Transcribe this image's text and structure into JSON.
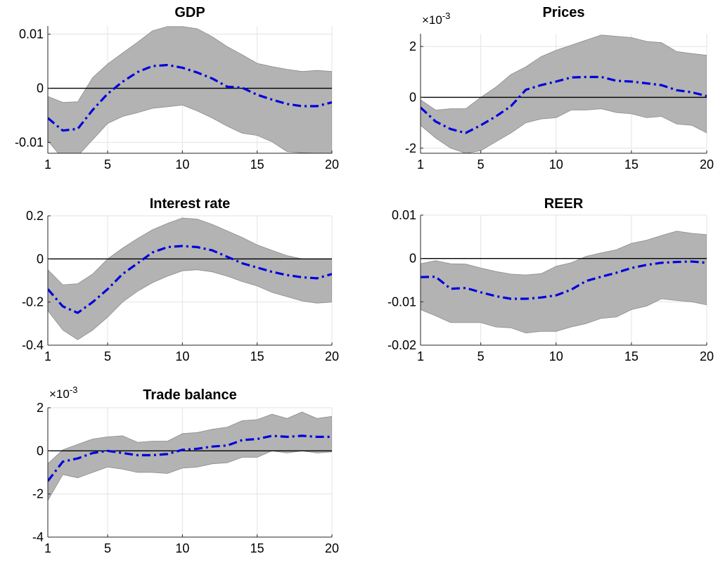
{
  "colors": {
    "band": "#b3b3b3",
    "band_edge": "#8c8c8c",
    "irf_line": "#0000dd",
    "zero_line": "#000000",
    "grid": "#e3e3e3",
    "axis": "#262626"
  },
  "chart_data": [
    {
      "type": "area",
      "title": "GDP",
      "exponent_label": "",
      "xlim": [
        1,
        20
      ],
      "ylim": [
        -0.012,
        0.0115
      ],
      "xticks": [
        1,
        5,
        10,
        15,
        20
      ],
      "yticks": [
        -0.01,
        0,
        0.01
      ],
      "ytick_labels": [
        "-0.01",
        "0",
        "0.01"
      ],
      "grid": true,
      "x": [
        1,
        2,
        3,
        4,
        5,
        6,
        7,
        8,
        9,
        10,
        11,
        12,
        13,
        14,
        15,
        16,
        17,
        18,
        19,
        20
      ],
      "series": [
        {
          "role": "median",
          "style": "dash-dot",
          "values": [
            -0.0055,
            -0.0078,
            -0.0075,
            -0.004,
            -0.001,
            0.0012,
            0.003,
            0.0041,
            0.0043,
            0.0038,
            0.0029,
            0.0018,
            0.0003,
            0.0001,
            -0.0012,
            -0.0021,
            -0.0029,
            -0.0033,
            -0.0033,
            -0.0026
          ]
        },
        {
          "role": "upper",
          "values": [
            -0.0015,
            -0.0026,
            -0.0025,
            0.002,
            0.0045,
            0.0065,
            0.0085,
            0.0106,
            0.0114,
            0.0114,
            0.011,
            0.0095,
            0.0077,
            0.0062,
            0.0046,
            0.004,
            0.0035,
            0.0031,
            0.0033,
            0.0031
          ]
        },
        {
          "role": "lower",
          "values": [
            -0.0097,
            -0.013,
            -0.0125,
            -0.0095,
            -0.0065,
            -0.0052,
            -0.0045,
            -0.0037,
            -0.0034,
            -0.0031,
            -0.0042,
            -0.0055,
            -0.007,
            -0.0083,
            -0.0087,
            -0.0099,
            -0.0117,
            -0.0119,
            -0.012,
            -0.012
          ]
        }
      ]
    },
    {
      "type": "area",
      "title": "Prices",
      "exponent_label": "×10",
      "exponent_power": "-3",
      "xlim": [
        1,
        20
      ],
      "ylim": [
        -2.2,
        2.5
      ],
      "xticks": [
        1,
        5,
        10,
        15,
        20
      ],
      "yticks": [
        -2,
        0,
        2
      ],
      "ytick_labels": [
        "-2",
        "0",
        "2"
      ],
      "grid": true,
      "x": [
        1,
        2,
        3,
        4,
        5,
        6,
        7,
        8,
        9,
        10,
        11,
        12,
        13,
        14,
        15,
        16,
        17,
        18,
        19,
        20
      ],
      "series": [
        {
          "role": "median",
          "style": "dash-dot",
          "values": [
            -0.4,
            -0.95,
            -1.25,
            -1.4,
            -1.1,
            -0.75,
            -0.35,
            0.3,
            0.48,
            0.62,
            0.78,
            0.8,
            0.8,
            0.65,
            0.62,
            0.55,
            0.48,
            0.28,
            0.2,
            0.05
          ]
        },
        {
          "role": "upper",
          "values": [
            -0.1,
            -0.5,
            -0.45,
            -0.45,
            0.0,
            0.4,
            0.9,
            1.2,
            1.6,
            1.85,
            2.05,
            2.25,
            2.45,
            2.4,
            2.35,
            2.2,
            2.15,
            1.8,
            1.72,
            1.65
          ]
        },
        {
          "role": "lower",
          "values": [
            -1.1,
            -1.6,
            -2.0,
            -2.2,
            -2.1,
            -1.75,
            -1.4,
            -1.0,
            -0.85,
            -0.8,
            -0.5,
            -0.5,
            -0.45,
            -0.6,
            -0.65,
            -0.8,
            -0.75,
            -1.05,
            -1.1,
            -1.4
          ]
        }
      ]
    },
    {
      "type": "area",
      "title": "Interest rate",
      "exponent_label": "",
      "xlim": [
        1,
        20
      ],
      "ylim": [
        -0.4,
        0.2
      ],
      "xticks": [
        1,
        5,
        10,
        15,
        20
      ],
      "yticks": [
        -0.4,
        -0.2,
        0,
        0.2
      ],
      "ytick_labels": [
        "-0.4",
        "-0.2",
        "0",
        "0.2"
      ],
      "grid": true,
      "x": [
        1,
        2,
        3,
        4,
        5,
        6,
        7,
        8,
        9,
        10,
        11,
        12,
        13,
        14,
        15,
        16,
        17,
        18,
        19,
        20
      ],
      "series": [
        {
          "role": "median",
          "style": "dash-dot",
          "values": [
            -0.14,
            -0.22,
            -0.25,
            -0.2,
            -0.14,
            -0.07,
            -0.02,
            0.03,
            0.055,
            0.06,
            0.055,
            0.04,
            0.01,
            -0.02,
            -0.04,
            -0.06,
            -0.075,
            -0.085,
            -0.09,
            -0.07
          ]
        },
        {
          "role": "upper",
          "values": [
            -0.05,
            -0.12,
            -0.115,
            -0.07,
            0.0,
            0.05,
            0.095,
            0.135,
            0.165,
            0.19,
            0.185,
            0.16,
            0.13,
            0.1,
            0.065,
            0.04,
            0.015,
            0.0,
            0.0,
            0.0
          ]
        },
        {
          "role": "lower",
          "values": [
            -0.24,
            -0.33,
            -0.375,
            -0.33,
            -0.27,
            -0.2,
            -0.15,
            -0.11,
            -0.08,
            -0.055,
            -0.05,
            -0.06,
            -0.08,
            -0.105,
            -0.125,
            -0.155,
            -0.175,
            -0.195,
            -0.205,
            -0.2
          ]
        }
      ]
    },
    {
      "type": "area",
      "title": "REER",
      "exponent_label": "",
      "xlim": [
        1,
        20
      ],
      "ylim": [
        -0.02,
        0.01
      ],
      "xticks": [
        1,
        5,
        10,
        15,
        20
      ],
      "yticks": [
        -0.02,
        -0.01,
        0,
        0.01
      ],
      "ytick_labels": [
        "-0.02",
        "-0.01",
        "0",
        "0.01"
      ],
      "grid": true,
      "x": [
        1,
        2,
        3,
        4,
        5,
        6,
        7,
        8,
        9,
        10,
        11,
        12,
        13,
        14,
        15,
        16,
        17,
        18,
        19,
        20
      ],
      "series": [
        {
          "role": "median",
          "style": "dash-dot",
          "values": [
            -0.0043,
            -0.0042,
            -0.007,
            -0.0068,
            -0.0078,
            -0.0087,
            -0.0093,
            -0.0093,
            -0.009,
            -0.0085,
            -0.0072,
            -0.0052,
            -0.0042,
            -0.0033,
            -0.0022,
            -0.0015,
            -0.001,
            -0.0008,
            -0.0007,
            -0.001
          ]
        },
        {
          "role": "upper",
          "values": [
            -0.0012,
            -0.0005,
            -0.0012,
            -0.0013,
            -0.0022,
            -0.003,
            -0.0036,
            -0.0038,
            -0.0035,
            -0.0018,
            -0.001,
            0.0005,
            0.0013,
            0.002,
            0.0035,
            0.0042,
            0.0053,
            0.0063,
            0.0058,
            0.0055
          ]
        },
        {
          "role": "lower",
          "values": [
            -0.0118,
            -0.0132,
            -0.0148,
            -0.0148,
            -0.0148,
            -0.0158,
            -0.016,
            -0.0172,
            -0.0168,
            -0.0168,
            -0.0158,
            -0.015,
            -0.0138,
            -0.0135,
            -0.0118,
            -0.011,
            -0.0093,
            -0.0097,
            -0.01,
            -0.0107
          ]
        }
      ]
    },
    {
      "type": "area",
      "title": "Trade balance",
      "exponent_label": "×10",
      "exponent_power": "-3",
      "xlim": [
        1,
        20
      ],
      "ylim": [
        -4,
        2
      ],
      "xticks": [
        1,
        5,
        10,
        15,
        20
      ],
      "yticks": [
        -4,
        -2,
        0,
        2
      ],
      "ytick_labels": [
        "-4",
        "-2",
        "0",
        "2"
      ],
      "grid": true,
      "x": [
        1,
        2,
        3,
        4,
        5,
        6,
        7,
        8,
        9,
        10,
        11,
        12,
        13,
        14,
        15,
        16,
        17,
        18,
        19,
        20
      ],
      "series": [
        {
          "role": "median",
          "style": "dash-dot",
          "values": [
            -1.4,
            -0.5,
            -0.35,
            -0.1,
            0.0,
            -0.1,
            -0.2,
            -0.2,
            -0.15,
            0.05,
            0.1,
            0.2,
            0.25,
            0.5,
            0.55,
            0.7,
            0.65,
            0.7,
            0.65,
            0.65
          ]
        },
        {
          "role": "upper",
          "values": [
            -0.6,
            0.05,
            0.3,
            0.55,
            0.65,
            0.7,
            0.4,
            0.45,
            0.45,
            0.8,
            0.85,
            1.0,
            1.1,
            1.4,
            1.45,
            1.7,
            1.5,
            1.8,
            1.5,
            1.6
          ]
        },
        {
          "role": "lower",
          "values": [
            -2.3,
            -1.1,
            -1.25,
            -1.0,
            -0.75,
            -0.85,
            -1.0,
            -1.0,
            -1.05,
            -0.8,
            -0.75,
            -0.6,
            -0.55,
            -0.3,
            -0.3,
            0.0,
            -0.1,
            0.0,
            -0.1,
            -0.05
          ]
        }
      ]
    }
  ]
}
